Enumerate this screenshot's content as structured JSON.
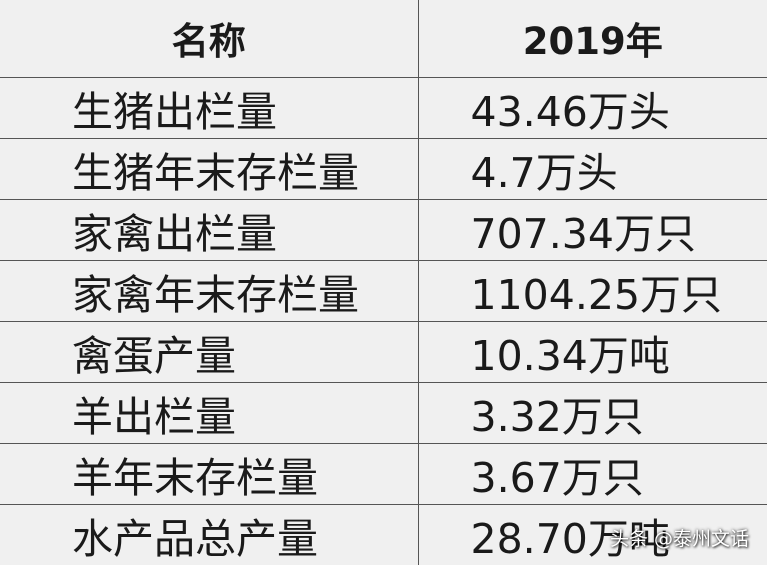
{
  "table": {
    "headers": [
      "名称",
      "2019年"
    ],
    "rows": [
      {
        "name": "生猪出栏量",
        "value": "43.46万头"
      },
      {
        "name": "生猪年末存栏量",
        "value": "4.7万头"
      },
      {
        "name": "家禽出栏量",
        "value": "707.34万只"
      },
      {
        "name": "家禽年末存栏量",
        "value": "1104.25万只"
      },
      {
        "name": "禽蛋产量",
        "value": "10.34万吨"
      },
      {
        "name": "羊出栏量",
        "value": "3.32万只"
      },
      {
        "name": "羊年末存栏量",
        "value": "3.67万只"
      },
      {
        "name": "水产品总产量",
        "value": "28.70万吨"
      }
    ]
  },
  "watermark": "头条 @泰州文话"
}
